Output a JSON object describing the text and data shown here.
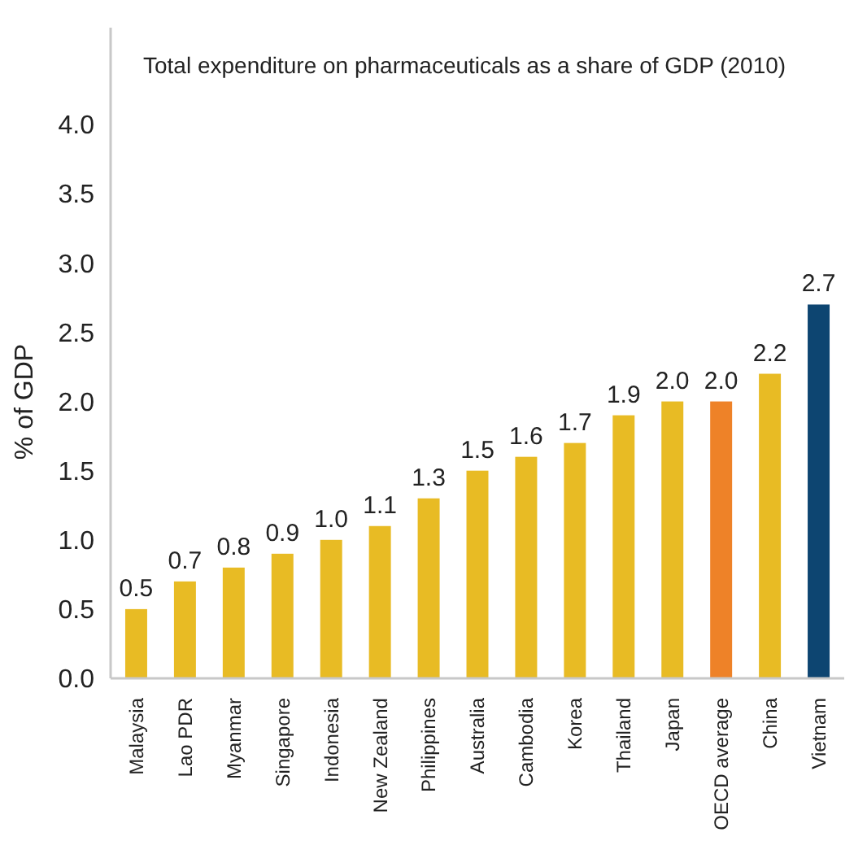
{
  "chart_data": {
    "type": "bar",
    "title": "Total expenditure on pharmaceuticals as a share of GDP (2010)",
    "ylabel": "% of GDP",
    "categories": [
      "Malaysia",
      "Lao PDR",
      "Myanmar",
      "Singapore",
      "Indonesia",
      "New Zealand",
      "Philippines",
      "Australia",
      "Cambodia",
      "Korea",
      "Thailand",
      "Japan",
      "OECD average",
      "China",
      "Vietnam"
    ],
    "values": [
      0.5,
      0.7,
      0.8,
      0.9,
      1.0,
      1.1,
      1.3,
      1.5,
      1.6,
      1.7,
      1.9,
      2.0,
      2.0,
      2.2,
      2.7
    ],
    "colors": [
      "#e8bb24",
      "#e8bb24",
      "#e8bb24",
      "#e8bb24",
      "#e8bb24",
      "#e8bb24",
      "#e8bb24",
      "#e8bb24",
      "#e8bb24",
      "#e8bb24",
      "#e8bb24",
      "#e8bb24",
      "#ee8228",
      "#e8bb24",
      "#0d4571"
    ],
    "ylim": [
      0,
      4.7
    ],
    "yticks": [
      {
        "value": 0,
        "label": "0.0"
      },
      {
        "value": 0.5,
        "label": "0.5"
      },
      {
        "value": 1,
        "label": "1.0"
      },
      {
        "value": 1.5,
        "label": "1.5"
      },
      {
        "value": 2,
        "label": "2.0"
      },
      {
        "value": 2.5,
        "label": "2.5"
      },
      {
        "value": 3,
        "label": "3.0"
      },
      {
        "value": 3.5,
        "label": "3.5"
      },
      {
        "value": 4,
        "label": "4.0"
      }
    ],
    "value_labels": [
      "0.5",
      "0.7",
      "0.8",
      "0.9",
      "1.0",
      "1.1",
      "1.3",
      "1.5",
      "1.6",
      "1.7",
      "1.9",
      "2.0",
      "2.0",
      "2.2",
      "2.7"
    ],
    "grid": false
  }
}
